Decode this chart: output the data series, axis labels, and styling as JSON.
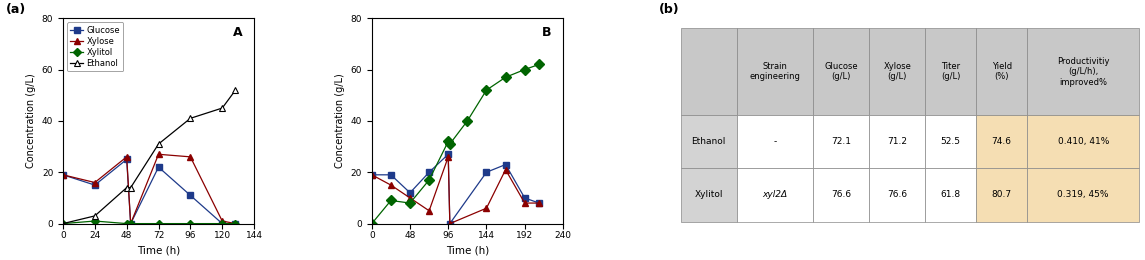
{
  "panel_a_label": "(a)",
  "panel_b_label": "(b)",
  "graph_A_label": "A",
  "graph_B_label": "B",
  "xlabel": "Time (h)",
  "ylabel": "Concentration (g/L)",
  "ylim": [
    0,
    80
  ],
  "yticks": [
    0,
    20,
    40,
    60,
    80
  ],
  "graphA": {
    "xlim": [
      0,
      144
    ],
    "xticks": [
      0,
      24,
      48,
      72,
      96,
      120,
      144
    ],
    "glucose": {
      "x": [
        0,
        24,
        48,
        51,
        72,
        96,
        120,
        130
      ],
      "y": [
        19,
        15,
        25,
        0,
        22,
        11,
        0,
        0
      ],
      "color": "#1e3a8a"
    },
    "xylose": {
      "x": [
        0,
        24,
        48,
        51,
        72,
        96,
        120,
        130
      ],
      "y": [
        19,
        16,
        26,
        0,
        27,
        26,
        1,
        0
      ],
      "color": "#8b0000"
    },
    "xylitol": {
      "x": [
        0,
        24,
        48,
        51,
        72,
        96,
        120,
        130
      ],
      "y": [
        0,
        1,
        0,
        0,
        0,
        0,
        0,
        0
      ],
      "color": "#006400"
    },
    "ethanol": {
      "x": [
        0,
        24,
        48,
        51,
        72,
        96,
        120,
        130
      ],
      "y": [
        0,
        3,
        14,
        14,
        31,
        41,
        45,
        52
      ],
      "color": "#000000"
    }
  },
  "graphB": {
    "xlim": [
      0,
      240
    ],
    "xticks": [
      0,
      48,
      96,
      144,
      192,
      240
    ],
    "glucose": {
      "x": [
        0,
        24,
        48,
        72,
        96,
        98,
        144,
        168,
        192,
        210
      ],
      "y": [
        19,
        19,
        12,
        20,
        27,
        0,
        20,
        23,
        10,
        8
      ],
      "color": "#1e3a8a"
    },
    "xylose": {
      "x": [
        0,
        24,
        48,
        72,
        96,
        98,
        144,
        168,
        192,
        210
      ],
      "y": [
        19,
        15,
        10,
        5,
        26,
        0,
        6,
        21,
        8,
        8
      ],
      "color": "#8b0000"
    },
    "xylitol": {
      "x": [
        0,
        24,
        48,
        72,
        96,
        98,
        120,
        144,
        168,
        192,
        210
      ],
      "y": [
        0,
        9,
        8,
        17,
        32,
        31,
        40,
        52,
        57,
        60,
        62
      ],
      "color": "#006400"
    }
  },
  "legend_labels": [
    "Glucose",
    "Xylose",
    "Xylitol",
    "Ethanol"
  ],
  "table": {
    "header_bg": "#c8c8c8",
    "highlight_bg": "#f5deb3",
    "row_bg": "#ffffff",
    "label_bg": "#d3d3d3",
    "col_headers": [
      "",
      "Strain\nengineering",
      "Glucose\n(g/L)",
      "Xylose\n(g/L)",
      "Titer\n(g/L)",
      "Yield\n(%)",
      "Productivitiy\n(g/L/h),\nimproved%"
    ],
    "rows": [
      [
        "Ethanol",
        "-",
        "72.1",
        "71.2",
        "52.5",
        "74.6",
        "0.410, 41%"
      ],
      [
        "Xylitol",
        "xyl2Δ",
        "76.6",
        "76.6",
        "61.8",
        "80.7",
        "0.319, 45%"
      ]
    ],
    "highlight_cols": [
      5,
      6
    ],
    "col_widths": [
      0.11,
      0.15,
      0.11,
      0.11,
      0.1,
      0.1,
      0.22
    ]
  }
}
